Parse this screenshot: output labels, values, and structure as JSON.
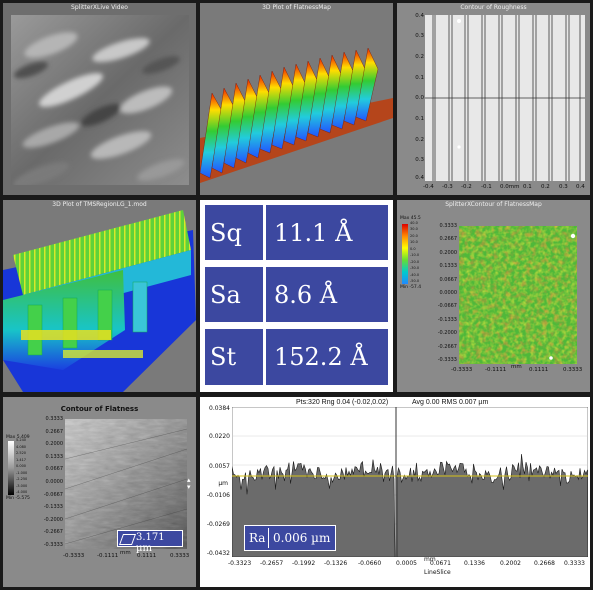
{
  "panels": {
    "live_video": {
      "title": "SplitterXLive Video"
    },
    "plot3d_flatness": {
      "title": "3D Plot of FlatnessMap"
    },
    "contour_roughness": {
      "title": "Contour of Roughness",
      "y_ticks": [
        "0.4",
        "0.3",
        "0.2",
        "0.1",
        "0.0",
        "0.1",
        "0.2",
        "0.3",
        "0.4"
      ],
      "x_ticks": [
        "-0.4",
        "-0.3",
        "-0.2",
        "-0.1",
        "0.0mm",
        "0.1",
        "0.2",
        "0.3",
        "0.4"
      ]
    },
    "plot3d_tmsregion": {
      "title": "3D Plot of TMSRegionLG_1.mod"
    },
    "stats": [
      {
        "label": "Sq",
        "value": "11.1 Å"
      },
      {
        "label": "Sa",
        "value": "8.6 Å"
      },
      {
        "label": "St",
        "value": "152.2 Å"
      }
    ],
    "contour_flatnessmap": {
      "title": "SplitterXContour of FlatnessMap",
      "legend_top": "Max 45.5",
      "legend_bottom": "Min -57.4",
      "legend_unit": "Å",
      "legend_values": [
        "40.0",
        "30.0",
        "20.0",
        "10.0",
        "0.0",
        "-10.0",
        "-20.0",
        "-30.0",
        "-40.0",
        "-50.0"
      ],
      "y_ticks": [
        "0.3333",
        "0.2667",
        "0.2000",
        "0.1333",
        "0.0667",
        "0.0000",
        "-0.0667",
        "-0.1333",
        "-0.2000",
        "-0.2667",
        "-0.3333"
      ],
      "x_ticks": [
        "-0.3333",
        "-0.1111",
        "mm",
        "0.1111",
        "0.3333"
      ]
    },
    "contour_flatness": {
      "title": "Contour of Flatness",
      "legend_top": "Max 5.409",
      "legend_bottom": "Min -5.575",
      "legend_unit": "µm",
      "legend_values": [
        "5.240",
        "4.080",
        "2.520",
        "1.417",
        "0.000",
        "-1.000",
        "-2.250",
        "-3.000",
        "-4.000"
      ],
      "y_ticks": [
        "0.3333",
        "0.2667",
        "0.2000",
        "0.1333",
        "0.0667",
        "0.0000",
        "-0.0667",
        "-0.1333",
        "-0.2000",
        "-0.2667",
        "-0.3333"
      ],
      "x_ticks": [
        "-0.3333",
        "-0.1111",
        "mm",
        "0.1111",
        "0.3333"
      ],
      "badge_value": "3.171 µm"
    },
    "profile_a": {
      "header": "Pts:320  Rng 0.04 (-0.02,0.02)",
      "y_ticks": [
        "0.0384",
        "0.0220",
        "0.0057",
        "-0.0106",
        "-0.0269",
        "-0.0432"
      ],
      "y_unit": "µm",
      "x_ticks": [
        "-0.3323",
        "-0.2657",
        "-0.1992",
        "-0.1326",
        "-0.0660"
      ],
      "ra_label": "Ra",
      "ra_value": "0.006 µm"
    },
    "profile_b": {
      "header": "Avg 0.00  RMS 0.007 µm",
      "x_ticks": [
        "0.0005",
        "0.0671",
        "0.1336",
        "0.2002",
        "0.2668",
        "0.3333"
      ],
      "x_unit": "mm",
      "x_label": "LineSlice"
    }
  }
}
